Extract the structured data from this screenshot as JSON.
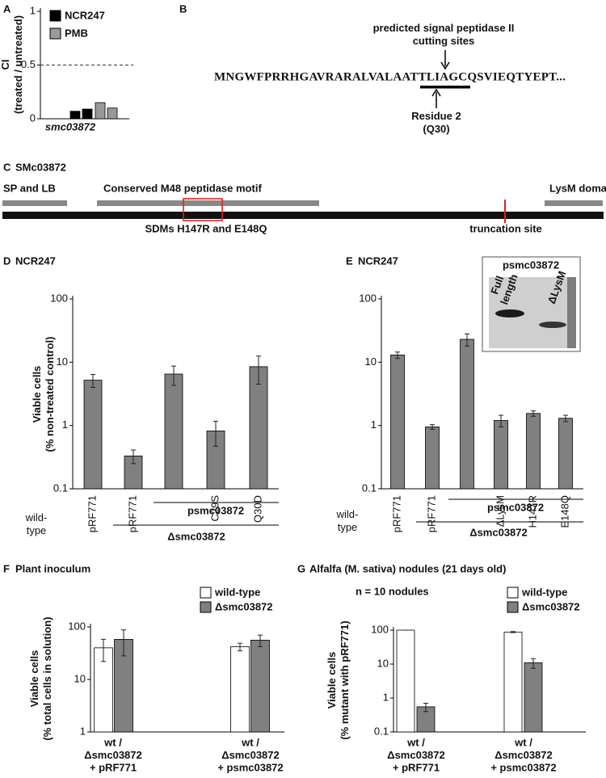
{
  "chart_data": [
    {
      "panel": "A",
      "type": "bar",
      "ylabel": "CI\n(treated / untreated)",
      "xlabel": "smc03872",
      "categories": [
        null,
        null
      ],
      "series": [
        {
          "name": "NCR247",
          "color": "#000000",
          "values": [
            0.07,
            0.09
          ]
        },
        {
          "name": "PMB",
          "color": "#999999",
          "values": [
            0.15,
            0.1
          ]
        }
      ],
      "ylim": [
        0,
        1
      ],
      "yticks": [
        0,
        0.5,
        1
      ],
      "reference_line": 0.5,
      "log_y": false
    },
    {
      "panel": "D",
      "type": "bar",
      "title": "NCR247",
      "ylabel": "Viable cells\n(% non-treated control)",
      "categories": [
        "pRF771",
        "pRF771",
        null,
        "C29S",
        "Q30D"
      ],
      "values": [
        5.2,
        0.33,
        6.5,
        0.82,
        8.5
      ],
      "errors": [
        1.2,
        0.08,
        2.2,
        0.35,
        4
      ],
      "color": "#808080",
      "ylim": [
        0.1,
        100
      ],
      "yticks": [
        0.1,
        1,
        10,
        100
      ],
      "log_y": true,
      "row_label": "wild-\ntype",
      "group_labels": [
        "psmc03872",
        "Δsmc03872"
      ]
    },
    {
      "panel": "E",
      "type": "bar",
      "title": "NCR247",
      "categories": [
        "pRF771",
        "pRF771",
        null,
        "ΔLysM",
        "H147R",
        "E148Q"
      ],
      "values": [
        13,
        0.95,
        23,
        1.2,
        1.55,
        1.3
      ],
      "errors": [
        1.5,
        0.08,
        5,
        0.25,
        0.15,
        0.15
      ],
      "color": "#808080",
      "ylim": [
        0.1,
        100
      ],
      "yticks": [
        0.1,
        1,
        10,
        100
      ],
      "log_y": true,
      "row_label": "wild-\ntype",
      "group_labels": [
        "psmc03872",
        "Δsmc03872"
      ],
      "inset": {
        "title": "psmc03872",
        "lanes": [
          "Full\nlength",
          "ΔLysM"
        ]
      }
    },
    {
      "panel": "F",
      "type": "bar",
      "title": "Plant inoculum",
      "ylabel": "Viable cells\n(% total cells in solution)",
      "categories": [
        "wt /\nΔsmc03872\n+ pRF771",
        "wt /\nΔsmc03872\n+ psmc03872"
      ],
      "series": [
        {
          "name": "wild-type",
          "color": "#ffffff",
          "values": [
            40,
            42
          ],
          "errors": [
            18,
            7
          ]
        },
        {
          "name": "Δsmc03872",
          "color": "#808080",
          "values": [
            58,
            56
          ],
          "errors": [
            30,
            14
          ]
        }
      ],
      "ylim": [
        1,
        100
      ],
      "yticks": [
        1,
        10,
        100
      ],
      "log_y": true
    },
    {
      "panel": "G",
      "type": "bar",
      "title": "Alfalfa (M. sativa) nodules (21 days old)",
      "annotation": "n = 10 nodules",
      "ylabel": "Viable cells\n(% mutant with pRF771)",
      "categories": [
        "wt /\nΔsmc03872\n+ pRF771",
        "wt /\nΔsmc03872\n+ psmc03872"
      ],
      "series": [
        {
          "name": "wild-type",
          "color": "#ffffff",
          "values": [
            100,
            88
          ],
          "errors": [
            0,
            3
          ]
        },
        {
          "name": "Δsmc03872",
          "color": "#808080",
          "values": [
            0.55,
            11
          ],
          "errors": [
            0.15,
            3.5
          ]
        }
      ],
      "ylim": [
        0.1,
        100
      ],
      "yticks": [
        0.1,
        1,
        10,
        100
      ],
      "log_y": true
    }
  ],
  "panel_b": {
    "label": "B",
    "annotation_top": "predicted signal peptidase II\ncutting sites",
    "sequence": "MNGWFPRRHGAVRARALVALAATTLIAGCQSVIEQTYEPT...",
    "annotation_bottom": "Residue 2\n(Q30)"
  },
  "panel_c": {
    "label": "C",
    "title": "SMc03872",
    "domains": [
      "SP and LB",
      "Conserved M48 peptidase motif",
      "LysM domain"
    ],
    "mutations": "SDMs H147R and E148Q",
    "truncation": "truncation site"
  }
}
